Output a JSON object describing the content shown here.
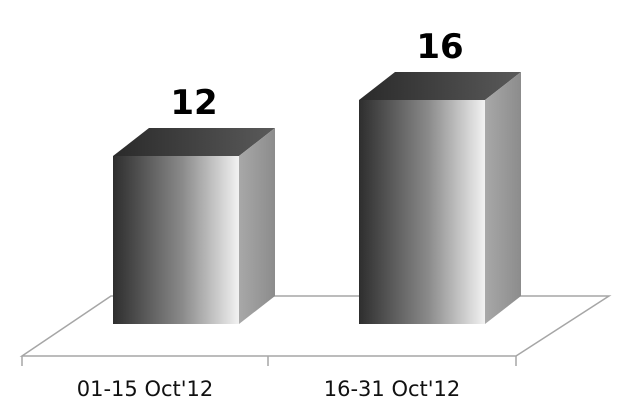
{
  "chart_data": {
    "type": "bar",
    "title": "",
    "xlabel": "",
    "ylabel": "",
    "categories": [
      "01-15 Oct'12",
      "16-31 Oct'12"
    ],
    "values": [
      12,
      16
    ],
    "data_labels": [
      "12",
      "16"
    ],
    "ylim": [
      0,
      16
    ],
    "grid": false,
    "legend": "none",
    "style": "3d-bar",
    "colors": {
      "bar_dark": "#2e2e2e",
      "bar_mid": "#8a8a8a",
      "bar_light": "#f2f2f2",
      "bar_top": "#3a3a3a",
      "bar_side": "#9a9a9a",
      "floor_line": "#a6a6a6"
    }
  }
}
